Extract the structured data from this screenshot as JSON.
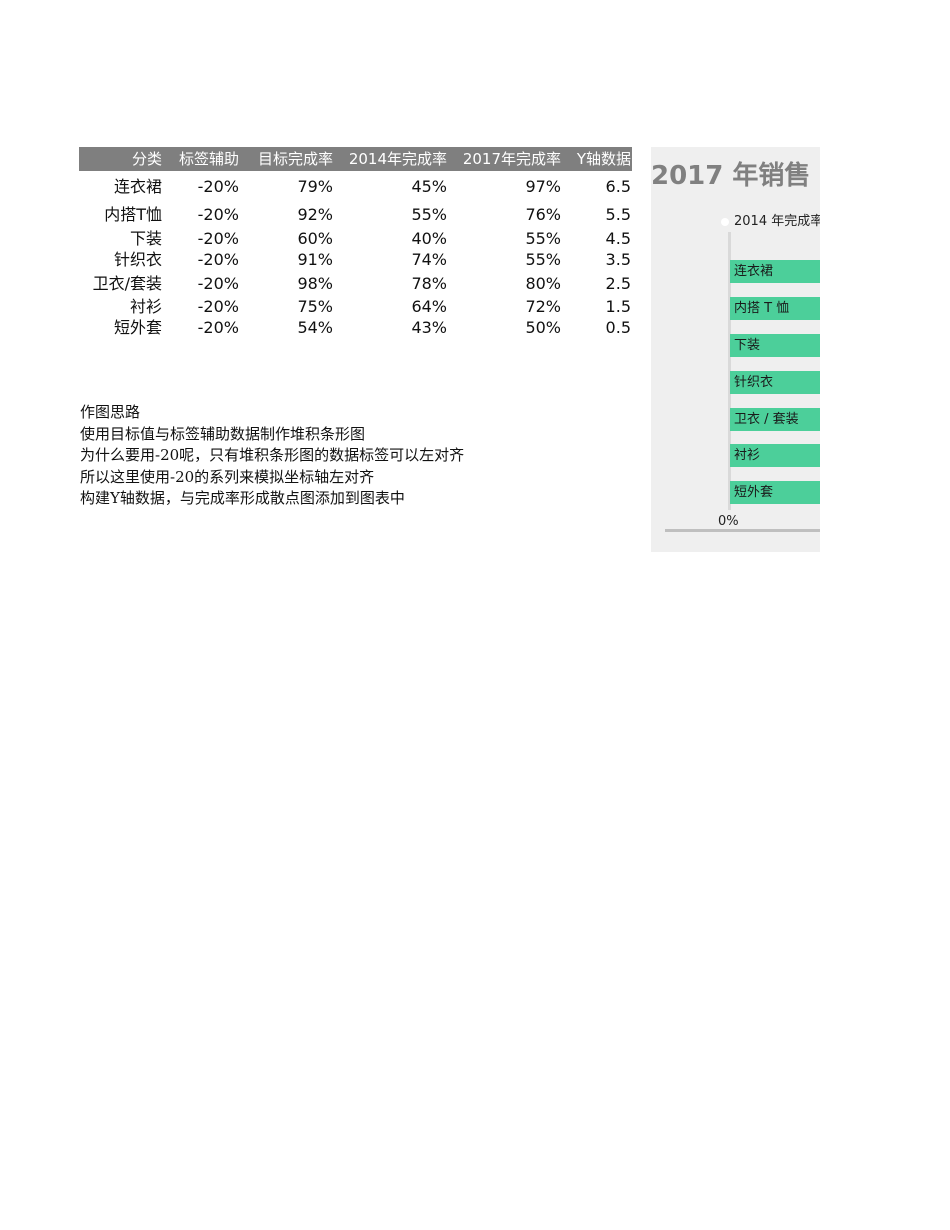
{
  "table": {
    "headers": [
      "分类",
      "标签辅助",
      "目标完成率",
      "2014年完成率",
      "2017年完成率",
      "Y轴数据"
    ],
    "rows": [
      [
        "连衣裙",
        "-20%",
        "79%",
        "45%",
        "97%",
        "6.5"
      ],
      [
        "内搭T恤",
        "-20%",
        "92%",
        "55%",
        "76%",
        "5.5"
      ],
      [
        "下装",
        "-20%",
        "60%",
        "40%",
        "55%",
        "4.5"
      ],
      [
        "针织衣",
        "-20%",
        "91%",
        "74%",
        "55%",
        "3.5"
      ],
      [
        "卫衣/套装",
        "-20%",
        "98%",
        "78%",
        "80%",
        "2.5"
      ],
      [
        "衬衫",
        "-20%",
        "75%",
        "64%",
        "72%",
        "1.5"
      ],
      [
        "短外套",
        "-20%",
        "54%",
        "43%",
        "50%",
        "0.5"
      ]
    ]
  },
  "notes": [
    "作图思路",
    "使用目标值与标签辅助数据制作堆积条形图",
    "为什么要用-20呢，只有堆积条形图的数据标签可以左对齐",
    "所以这里使用-20的系列来模拟坐标轴左对齐",
    "构建Y轴数据，与完成率形成散点图添加到图表中"
  ],
  "chart": {
    "title": "2017 年销售",
    "legend": "2014 年完成率",
    "axis_tick": "0%",
    "bar_color": "#4ccf9a",
    "bar_labels": [
      "连衣裙",
      "内搭 T 恤",
      "下装",
      "针织衣",
      "卫衣 / 套装",
      "衬衫",
      "短外套"
    ]
  },
  "chart_data": {
    "type": "bar",
    "categories": [
      "连衣裙",
      "内搭 T 恤",
      "下装",
      "针织衣",
      "卫衣 / 套装",
      "衬衫",
      "短外套"
    ],
    "series": [
      {
        "values": [
          -20,
          -20,
          -20,
          -20,
          -20,
          -20,
          -20
        ]
      },
      {
        "values": [
          79,
          92,
          60,
          91,
          98,
          75,
          54
        ]
      }
    ],
    "title": "2017 年销售",
    "legend": [
      "2014 年完成率"
    ],
    "x_tick_labels": [
      "0%"
    ]
  }
}
